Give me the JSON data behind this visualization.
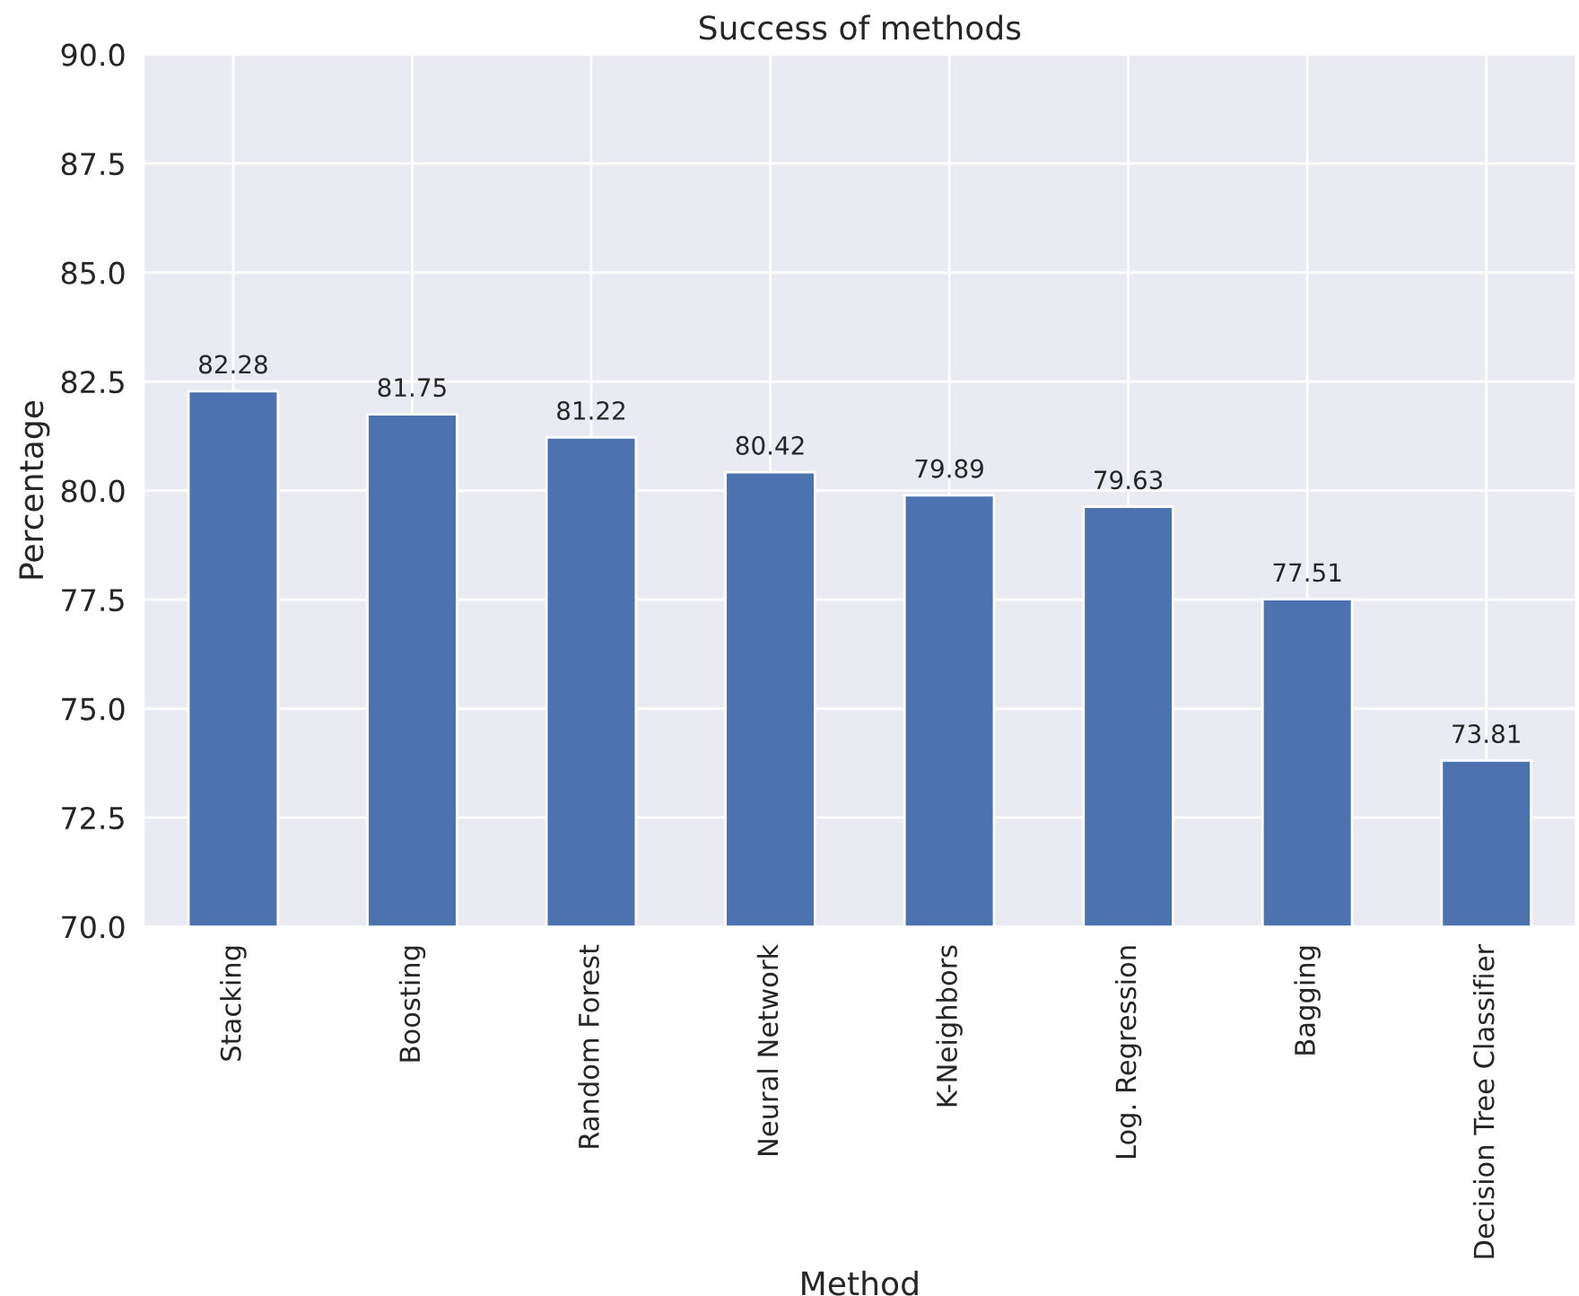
{
  "chart_data": {
    "type": "bar",
    "title": "Success of methods",
    "xlabel": "Method",
    "ylabel": "Percentage",
    "categories": [
      "Stacking",
      "Boosting",
      "Random Forest",
      "Neural Network",
      "K-Neighbors",
      "Log. Regression",
      "Bagging",
      "Decision Tree Classifier"
    ],
    "values": [
      82.28,
      81.75,
      81.22,
      80.42,
      79.89,
      79.63,
      77.51,
      73.81
    ],
    "color": "#4c72b0",
    "ylim": [
      70,
      90
    ],
    "yticks": [
      {
        "value": 70,
        "label": "70.0"
      },
      {
        "value": 72.5,
        "label": "72.5"
      },
      {
        "value": 75,
        "label": "75.0"
      },
      {
        "value": 77.5,
        "label": "77.5"
      },
      {
        "value": 80,
        "label": "80.0"
      },
      {
        "value": 82.5,
        "label": "82.5"
      },
      {
        "value": 85,
        "label": "85.0"
      },
      {
        "value": 87.5,
        "label": "87.5"
      },
      {
        "value": 90,
        "label": "90.0"
      }
    ],
    "grid": true,
    "data_labels": true
  }
}
